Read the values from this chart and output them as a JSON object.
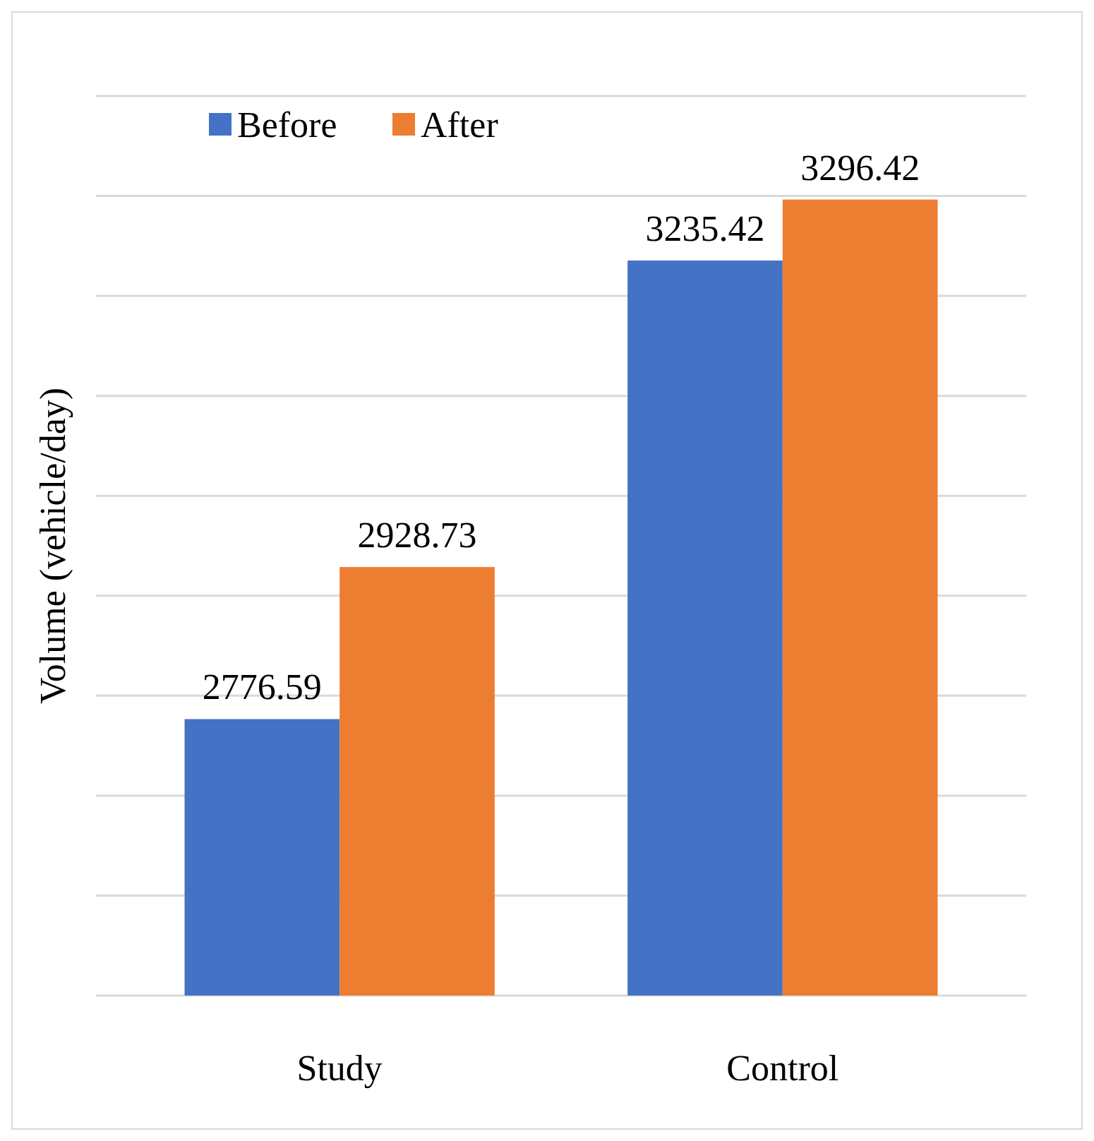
{
  "chart_data": {
    "type": "bar",
    "ylabel": "Volume (vehicle/day)",
    "categories": [
      "Study",
      "Control"
    ],
    "series": [
      {
        "name": "Before",
        "color": "#4472c4",
        "values": [
          2776.59,
          3235.42
        ]
      },
      {
        "name": "After",
        "color": "#ed7d31",
        "values": [
          2928.73,
          3296.42
        ]
      }
    ],
    "ylim": [
      2500,
      3400
    ],
    "yticks": [
      {
        "value": 2500,
        "label": null
      },
      {
        "value": 2600,
        "label": null
      },
      {
        "value": 2700,
        "label": null
      },
      {
        "value": 2800,
        "label": null
      },
      {
        "value": 2900,
        "label": null
      },
      {
        "value": 3000,
        "label": null
      },
      {
        "value": 3100,
        "label": null
      },
      {
        "value": 3200,
        "label": null
      },
      {
        "value": 3300,
        "label": null
      },
      {
        "value": 3400,
        "label": null
      }
    ],
    "grid": "y",
    "tick_labels": "x",
    "legend": "top left",
    "data_labels": true
  }
}
